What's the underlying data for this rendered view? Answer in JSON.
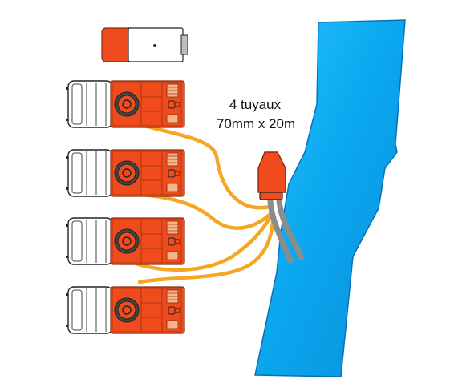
{
  "caption": {
    "line1": "4 tuyaux",
    "line2": "70mm x 20m"
  },
  "colors": {
    "water": "#0aaaf0",
    "water_dark": "#0b6fb8",
    "hose": "#f5a623",
    "truck_body": "#f04b1c",
    "truck_cab": "#ffffff",
    "suction_hose": "#8c8c8c",
    "outline": "#222222"
  },
  "diagram": {
    "trucks": 4,
    "support_vehicle": 1,
    "hoses": 4
  }
}
